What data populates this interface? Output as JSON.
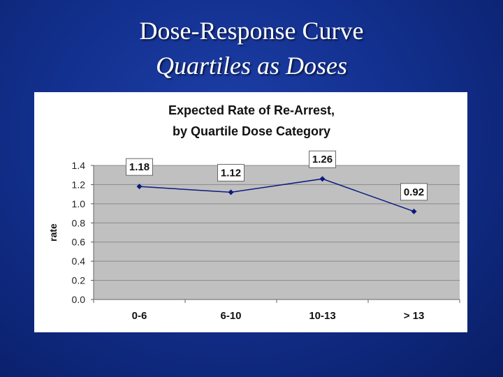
{
  "slide": {
    "title": "Dose-Response Curve",
    "subtitle": "Quartiles as Doses"
  },
  "colors": {
    "background": "#12308e",
    "chart_panel": "#ffffff",
    "plot_area": "#c0c0c0",
    "line": "#0a1a80",
    "marker": "#0a1a80"
  },
  "chart_data": {
    "type": "line",
    "title": "Expected Rate of Re-Arrest,",
    "subtitle": "by Quartile Dose Category",
    "xlabel": "",
    "ylabel": "rate",
    "categories": [
      "0-6",
      "6-10",
      "10-13",
      "> 13"
    ],
    "values": [
      1.18,
      1.12,
      1.26,
      0.92
    ],
    "data_labels": [
      "1.18",
      "1.12",
      "1.26",
      "0.92"
    ],
    "ylim": [
      0,
      1.4
    ],
    "y_ticks": [
      {
        "value": 0.0,
        "label": "0.0"
      },
      {
        "value": 0.2,
        "label": "0.2"
      },
      {
        "value": 0.4,
        "label": "0.4"
      },
      {
        "value": 0.6,
        "label": "0.6"
      },
      {
        "value": 0.8,
        "label": "0.8"
      },
      {
        "value": 1.0,
        "label": "1.0"
      },
      {
        "value": 1.2,
        "label": "1.2"
      },
      {
        "value": 1.4,
        "label": "1.4"
      }
    ],
    "grid": true,
    "legend": "none"
  }
}
